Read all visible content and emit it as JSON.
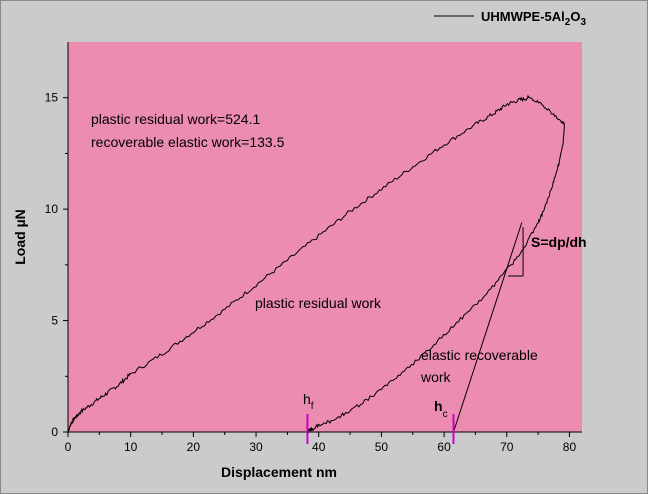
{
  "chart_data": {
    "type": "line",
    "xlabel": "Displacement nm",
    "ylabel": "Load µN",
    "xlim": [
      0,
      82
    ],
    "ylim": [
      0,
      17.5
    ],
    "x_ticks": [
      0,
      10,
      20,
      30,
      40,
      50,
      60,
      70,
      80
    ],
    "y_ticks": [
      0,
      5,
      10,
      15
    ],
    "grid": false,
    "legend_position": "top-right",
    "colors": {
      "plot_background": "#ec8cb0",
      "outer_background": "#cbcbcb",
      "curve": "#000000",
      "marker": "#cc00cc"
    },
    "legend": {
      "prefix": "UHMWPE-5Al",
      "sub1": "2",
      "mid": "O",
      "sub2": "3"
    },
    "series": [
      {
        "name": "UHMWPE-5Al2O3",
        "loading": {
          "x": [
            0,
            0.5,
            1,
            2,
            4,
            6,
            8,
            10,
            15,
            20,
            25,
            30,
            35,
            40,
            45,
            50,
            55,
            60,
            65,
            68,
            70,
            72,
            73.5
          ],
          "y": [
            0,
            0.4,
            0.6,
            0.9,
            1.3,
            1.7,
            2.1,
            2.6,
            3.5,
            4.5,
            5.5,
            6.6,
            7.7,
            8.8,
            9.9,
            10.9,
            11.9,
            12.9,
            13.8,
            14.3,
            14.7,
            14.9,
            15.0
          ]
        },
        "hold": {
          "x": [
            73.5,
            75,
            76.5,
            78,
            79.2
          ],
          "y": [
            15.0,
            14.8,
            14.5,
            14.1,
            13.8
          ]
        },
        "unloading": {
          "x": [
            79.2,
            79,
            78.5,
            78,
            77,
            76,
            75,
            73,
            71,
            68,
            65,
            62,
            59,
            56,
            53,
            50,
            47,
            44,
            42,
            40,
            39,
            38.3
          ],
          "y": [
            13.8,
            13.0,
            12.3,
            11.7,
            10.8,
            10.0,
            9.4,
            8.4,
            7.6,
            6.6,
            5.7,
            4.9,
            4.1,
            3.3,
            2.6,
            1.9,
            1.3,
            0.8,
            0.5,
            0.3,
            0.15,
            0.05
          ]
        }
      }
    ],
    "tangent_line": {
      "x": [
        61.5,
        72.4
      ],
      "y": [
        0,
        9.4
      ]
    },
    "slope_triangle": {
      "x1": 70.2,
      "x2": 72.6,
      "y1": 7.0,
      "y2": 9.2
    },
    "markers": {
      "hf": 38.2,
      "hc": 61.5
    },
    "annotations": {
      "work_plastic": "plastic residual work=524.1",
      "work_elastic": "recoverable elastic work=133.5",
      "region_plastic": "plastic residual work",
      "region_elastic_line1": "elastic recoverable",
      "region_elastic_line2": "work",
      "slope": "S=dp/dh",
      "hf_main": "h",
      "hf_sub": "f",
      "hc_main": "h",
      "hc_sub": "c"
    }
  }
}
